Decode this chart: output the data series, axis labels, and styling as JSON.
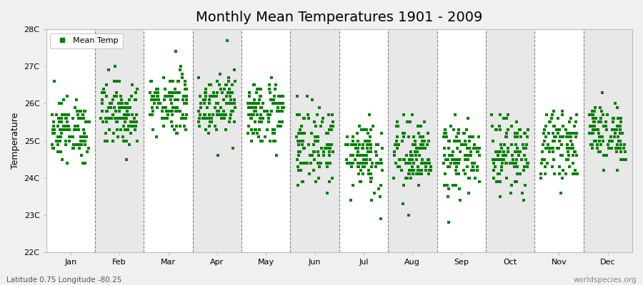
{
  "title": "Monthly Mean Temperatures 1901 - 2009",
  "ylabel": "Temperature",
  "xlabel": "",
  "footer_left": "Latitude 0.75 Longitude -80.25",
  "footer_right": "worldspecies.org",
  "legend_label": "Mean Temp",
  "marker_color": "#008000",
  "marker_size": 3,
  "ylim": [
    22,
    28
  ],
  "ytick_labels": [
    "22C",
    "23C",
    "24C",
    "25C",
    "26C",
    "27C",
    "28C"
  ],
  "ytick_values": [
    22,
    23,
    24,
    25,
    26,
    27,
    28
  ],
  "months": [
    "Jan",
    "Feb",
    "Mar",
    "Apr",
    "May",
    "Jun",
    "Jul",
    "Aug",
    "Sep",
    "Oct",
    "Nov",
    "Dec"
  ],
  "month_means": [
    25.3,
    25.75,
    26.05,
    26.05,
    25.75,
    24.85,
    24.65,
    24.55,
    24.55,
    24.65,
    24.9,
    25.2
  ],
  "month_stds": [
    0.4,
    0.45,
    0.42,
    0.42,
    0.45,
    0.55,
    0.52,
    0.5,
    0.48,
    0.48,
    0.42,
    0.4
  ],
  "n_years": 109,
  "bg_color": "#f0f0f0",
  "band_colors": [
    "#ffffff",
    "#e8e8e8"
  ],
  "dashed_line_color": "#666666",
  "title_fontsize": 14,
  "axis_label_fontsize": 9,
  "tick_fontsize": 8,
  "footer_fontsize": 7.5
}
